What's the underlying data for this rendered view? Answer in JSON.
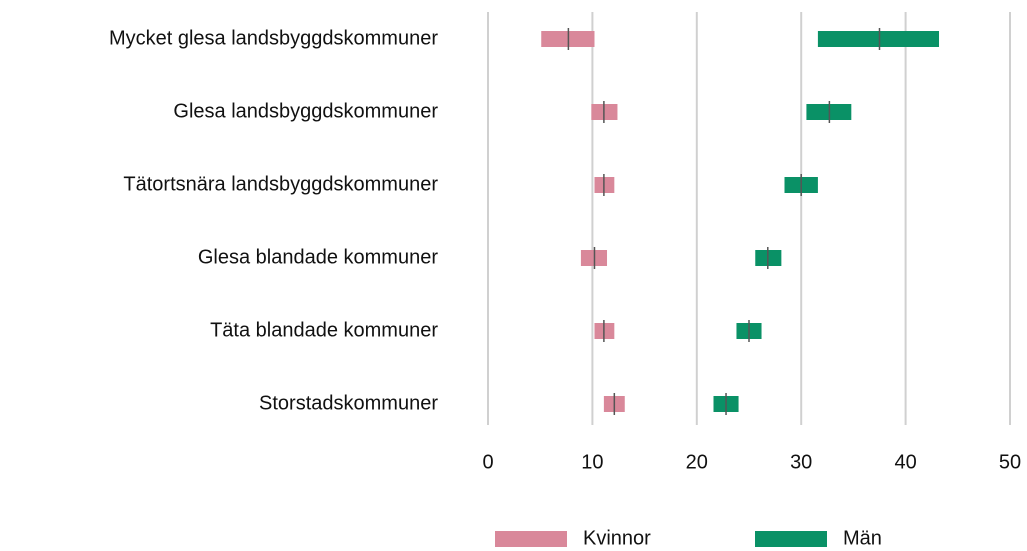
{
  "chart_data": {
    "type": "interval",
    "categories": [
      "Mycket glesa landsbyggdskommuner",
      "Glesa landsbyggdskommuner",
      "Tätortsnära landsbyggdskommuner",
      "Glesa blandade kommuner",
      "Täta blandade kommuner",
      "Storstadskommuner"
    ],
    "series": [
      {
        "name": "Kvinnor",
        "color": "#d9889a",
        "low": [
          5.1,
          9.9,
          10.2,
          8.9,
          10.2,
          11.1
        ],
        "values": [
          7.7,
          11.1,
          11.1,
          10.2,
          11.1,
          12.1
        ],
        "high": [
          10.2,
          12.4,
          12.1,
          11.4,
          12.1,
          13.1
        ]
      },
      {
        "name": "Män",
        "color": "#0a9166",
        "low": [
          31.6,
          30.5,
          28.4,
          25.6,
          23.8,
          21.6
        ],
        "values": [
          37.5,
          32.7,
          30.0,
          26.8,
          25.0,
          22.8
        ],
        "high": [
          43.2,
          34.8,
          31.6,
          28.1,
          26.2,
          24.0
        ]
      }
    ],
    "xlim": [
      0,
      50
    ],
    "xticks": [
      0,
      10,
      20,
      30,
      40,
      50
    ],
    "grid": true,
    "legend": "bottom"
  }
}
